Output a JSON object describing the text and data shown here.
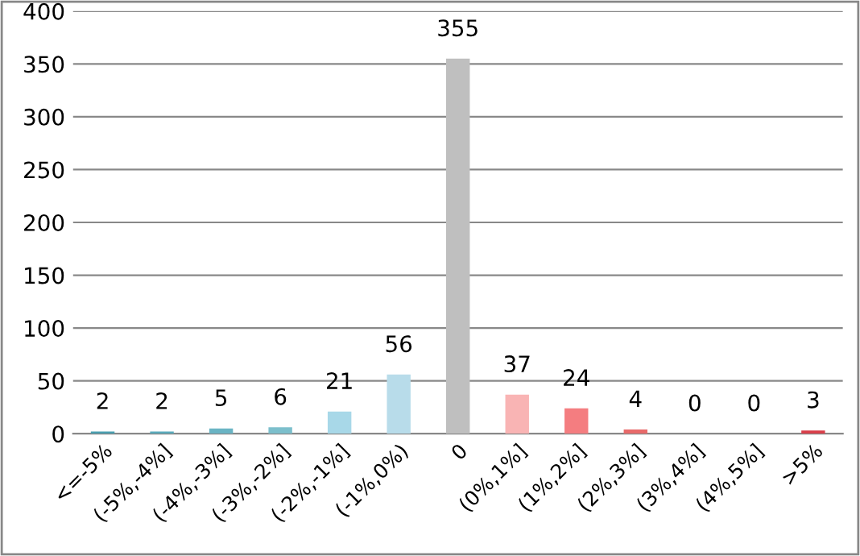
{
  "chart_data": {
    "type": "bar",
    "categories": [
      "<=-5%",
      "(-5%,-4%]",
      "(-4%,-3%]",
      "(-3%,-2%]",
      "(-2%,-1%]",
      "(-1%,0%)",
      "0",
      "(0%,1%]",
      "(1%,2%]",
      "(2%,3%]",
      "(3%,4%]",
      "(4%,5%]",
      ">5%"
    ],
    "values": [
      2,
      2,
      5,
      6,
      21,
      56,
      355,
      37,
      24,
      4,
      0,
      0,
      3
    ],
    "colors": [
      "#4a9fb0",
      "#5aaabb",
      "#6ab4c4",
      "#7cbfcc",
      "#a8d8e8",
      "#b8dcea",
      "#bfbfbf",
      "#f9b4b4",
      "#f47d80",
      "#e86a6a",
      "#e05a5a",
      "#d84c4c",
      "#d93f4a"
    ],
    "ylim": [
      0,
      400
    ],
    "yticks": [
      0,
      50,
      100,
      150,
      200,
      250,
      300,
      350,
      400
    ],
    "grid": "y",
    "data_labels": true
  }
}
